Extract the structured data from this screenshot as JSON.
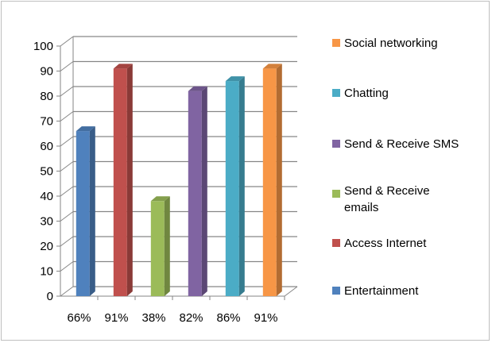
{
  "chart_data": {
    "type": "bar",
    "title": "",
    "xlabel": "",
    "ylabel": "",
    "categories": [
      "66%",
      "91%",
      "38%",
      "82%",
      "86%",
      "91%"
    ],
    "values": [
      66,
      91,
      38,
      82,
      86,
      91
    ],
    "bar_colors": [
      "#4f81bd",
      "#c0504d",
      "#9bbb59",
      "#8064a2",
      "#4bacc6",
      "#f79646"
    ],
    "ylim": [
      0,
      100
    ],
    "yticks": [
      0,
      10,
      20,
      30,
      40,
      50,
      60,
      70,
      80,
      90,
      100
    ],
    "grid": true,
    "style": "3d-column",
    "legend_position": "right",
    "legend": [
      {
        "label": "Social networking",
        "color": "#f79646"
      },
      {
        "label": "Chatting",
        "color": "#4bacc6"
      },
      {
        "label": "Send & Receive SMS",
        "color": "#8064a2"
      },
      {
        "label": "Send & Receive emails",
        "color": "#9bbb59"
      },
      {
        "label": "Access Internet",
        "color": "#c0504d"
      },
      {
        "label": "Entertainment",
        "color": "#4f81bd"
      }
    ]
  }
}
